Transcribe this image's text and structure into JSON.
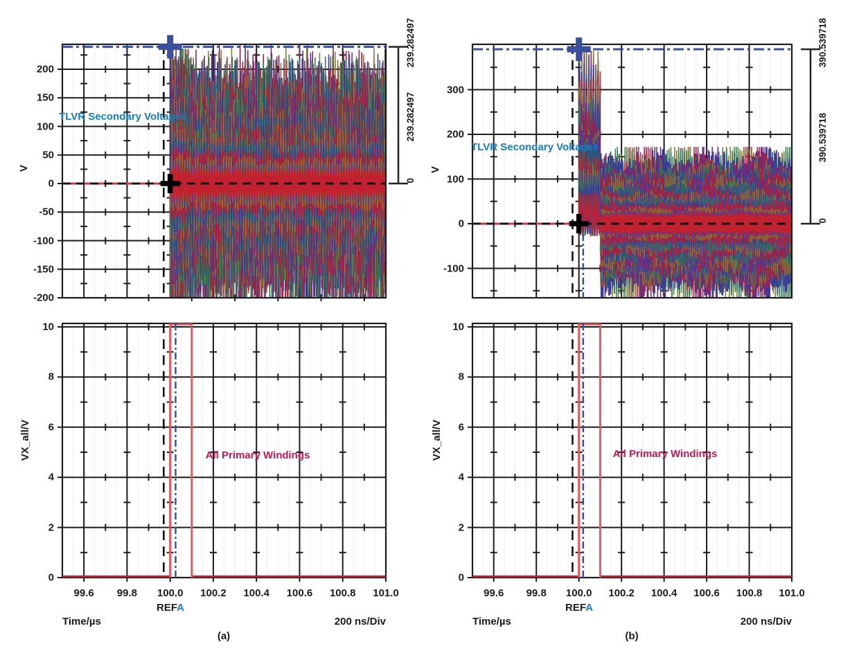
{
  "colors": {
    "grid": "#1b1b1b",
    "minor_grid": "#ececf2",
    "text": "#1b1b1b",
    "blue_text": "#147cc2",
    "cursor_blue": "#3a4f9e",
    "red_trace": "#c0232d",
    "pulse_red": "#ee5459",
    "red_zero_line": "#d43540",
    "crimson_text": "#c41753",
    "wave_palette": [
      "#c22230",
      "#2c3f9e",
      "#2a7a55",
      "#55309a",
      "#7a8033",
      "#8f2350"
    ]
  },
  "panels": [
    {
      "caption": "(a)",
      "xlabel": "Time/µs",
      "div_label": "200 ns/Div",
      "ref_label": "REF",
      "ref_channel": "A",
      "xticks": [
        "99.6",
        "99.8",
        "100.0",
        "100.2",
        "100.4",
        "100.6",
        "100.8",
        "101.0"
      ],
      "top": {
        "ylabel": "V",
        "yticks": [
          200,
          150,
          100,
          50,
          0,
          -50,
          -100,
          -150,
          -200
        ],
        "annotation": "TLVR Secondary Voltages",
        "cursor_level": 239.282497,
        "bracket": {
          "top_label": "239.282497",
          "mid_label": "239.282497",
          "bottom_label": "0"
        },
        "waveform": {
          "type": "sustained",
          "t0": 100.0,
          "t1": 101.0,
          "period": 0.012,
          "traces": 30,
          "amp_min": 14,
          "amp_max": 205,
          "boost": 1.2,
          "boost_until": 100.085,
          "cap": 236,
          "seed": 7
        }
      },
      "bottom": {
        "ylabel": "VX_all/V",
        "yticks": [
          10,
          8,
          6,
          4,
          2,
          0
        ],
        "annotation": "All Primary Windings",
        "pulse": {
          "start": 100.0,
          "end": 100.1,
          "height": 10.1
        }
      }
    },
    {
      "caption": "(b)",
      "xlabel": "Time/µs",
      "div_label": "200 ns/Div",
      "ref_label": "REF",
      "ref_channel": "A",
      "xticks": [
        "99.6",
        "99.8",
        "100.0",
        "100.2",
        "100.4",
        "100.6",
        "100.8",
        "101.0"
      ],
      "top": {
        "ylabel": "V",
        "yticks": [
          300,
          200,
          100,
          0,
          -100
        ],
        "annotation": "TLVR Secondary Voltages",
        "cursor_level": 390.539718,
        "bracket": {
          "top_label": "390.539718",
          "mid_label": "390.539718",
          "bottom_label": "0"
        },
        "waveform": {
          "type": "burst_ring",
          "burst": {
            "t0": 100.0,
            "t1": 100.1,
            "period": 0.011,
            "traces": 24,
            "peak_min": 70,
            "peak_max": 382,
            "trough_min": -8,
            "trough_max": -28,
            "cap": 387,
            "seed": 11
          },
          "ring": {
            "t0": 100.1,
            "t1": 101.0,
            "period": 0.009,
            "traces": 30,
            "amp_min": 14,
            "amp_max": 165,
            "mod_depth": 0.1,
            "mod_period": 0.26,
            "growth": 0.05,
            "cap": 172,
            "seed": 23
          }
        }
      },
      "bottom": {
        "ylabel": "VX_all/V",
        "yticks": [
          10,
          8,
          6,
          4,
          2,
          0
        ],
        "annotation": "All Primary Windings",
        "pulse": {
          "start": 100.0,
          "end": 100.1,
          "height": 10.1
        }
      }
    }
  ],
  "chart_data": [
    {
      "id": "a-top",
      "type": "line",
      "title": "TLVR Secondary Voltages",
      "xlabel": "Time/µs",
      "ylabel": "V",
      "xlim": [
        99.5,
        101.0
      ],
      "ylim": [
        -205,
        244
      ],
      "xticks": [
        99.6,
        99.8,
        100.0,
        100.2,
        100.4,
        100.6,
        100.8,
        101.0
      ],
      "yticks": [
        200,
        150,
        100,
        50,
        0,
        -50,
        -100,
        -150,
        -200
      ],
      "time_per_div": "200 ns/Div",
      "ref_cursor": "REFA",
      "step_time_us": 100.0,
      "pre_step_level_V": 0,
      "cursor_levels_V": [
        239.282497,
        0
      ],
      "cursor_delta_V": 239.282497,
      "first_peak_V": 239.282497,
      "post_step_envelope_V": [
        -205,
        205
      ],
      "legend_position": "none",
      "grid": true
    },
    {
      "id": "a-bottom",
      "type": "line",
      "title": "All Primary Windings",
      "xlabel": "Time/µs",
      "ylabel": "VX_all/V",
      "xlim": [
        99.5,
        101.0
      ],
      "ylim": [
        0,
        10.2
      ],
      "xticks": [
        99.6,
        99.8,
        100.0,
        100.2,
        100.4,
        100.6,
        100.8,
        101.0
      ],
      "yticks": [
        0,
        2,
        4,
        6,
        8,
        10
      ],
      "pulse": {
        "start_us": 100.0,
        "end_us": 100.1,
        "amplitude_V": 10.1,
        "baseline_V": 0
      },
      "grid": true
    },
    {
      "id": "b-top",
      "type": "line",
      "title": "TLVR Secondary Voltages",
      "xlabel": "Time/µs",
      "ylabel": "V",
      "xlim": [
        99.5,
        101.0
      ],
      "ylim": [
        -170,
        400
      ],
      "xticks": [
        99.6,
        99.8,
        100.0,
        100.2,
        100.4,
        100.6,
        100.8,
        101.0
      ],
      "yticks": [
        300,
        200,
        100,
        0,
        -100
      ],
      "time_per_div": "200 ns/Div",
      "ref_cursor": "REFA",
      "step_time_us": 100.0,
      "pre_step_level_V": 0,
      "cursor_levels_V": [
        390.539718,
        0
      ],
      "cursor_delta_V": 390.539718,
      "burst_window_us": [
        100.0,
        100.1
      ],
      "burst_envelope_V": [
        -25,
        390
      ],
      "ring_envelope_V": [
        -160,
        168
      ],
      "legend_position": "none",
      "grid": true
    },
    {
      "id": "b-bottom",
      "type": "line",
      "title": "All Primary Windings",
      "xlabel": "Time/µs",
      "ylabel": "VX_all/V",
      "xlim": [
        99.5,
        101.0
      ],
      "ylim": [
        0,
        10.2
      ],
      "xticks": [
        99.6,
        99.8,
        100.0,
        100.2,
        100.4,
        100.6,
        100.8,
        101.0
      ],
      "yticks": [
        0,
        2,
        4,
        6,
        8,
        10
      ],
      "pulse": {
        "start_us": 100.0,
        "end_us": 100.1,
        "amplitude_V": 10.1,
        "baseline_V": 0
      },
      "grid": true
    }
  ]
}
